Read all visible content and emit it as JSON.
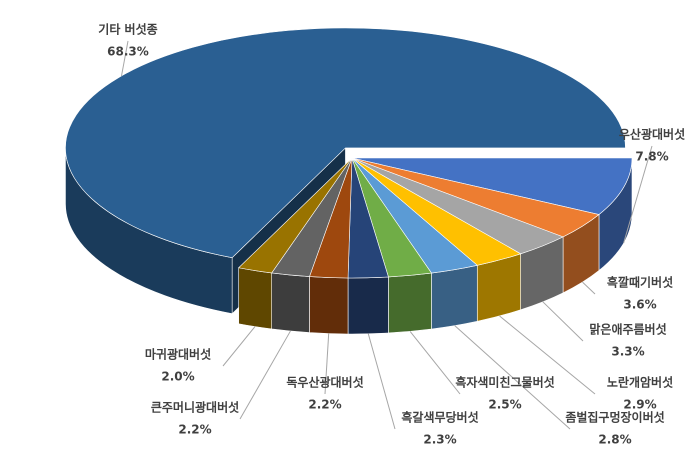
{
  "chart_data": {
    "type": "pie",
    "categories": [
      "기타 버섯종",
      "우산광대버섯",
      "흑깔때기버섯",
      "맑은애주름버섯",
      "노란개암버섯",
      "좀벌집구멍장이버섯",
      "흑자색미친그물버섯",
      "흑갈색무당버섯",
      "독우산광대버섯",
      "큰주머니광대버섯",
      "마귀광대버섯"
    ],
    "values": [
      68.3,
      7.8,
      3.6,
      3.3,
      2.9,
      2.8,
      2.5,
      2.3,
      2.2,
      2.2,
      2.0
    ],
    "value_labels": [
      "68.3%",
      "7.8%",
      "3.6%",
      "3.3%",
      "2.9%",
      "2.8%",
      "2.5%",
      "2.3%",
      "2.2%",
      "2.2%",
      "2.0%"
    ],
    "colors": [
      "#2a5f92",
      "#4472c4",
      "#ed7d31",
      "#a5a5a5",
      "#ffc000",
      "#5b9bd5",
      "#70ad47",
      "#264478",
      "#9e480e",
      "#636363",
      "#997300"
    ]
  }
}
